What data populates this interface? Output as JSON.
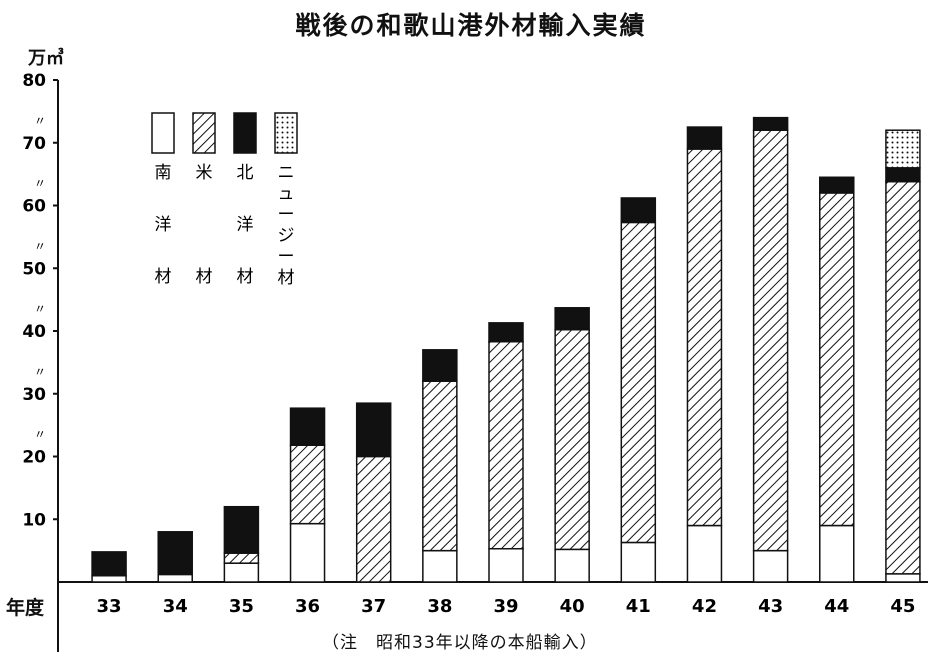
{
  "chart_data": {
    "type": "bar",
    "stacked": true,
    "title": "戦後の和歌山港外材輸入実績",
    "unit_label": "万㎥",
    "xlabel": "年度",
    "note": "（注　昭和33年以降の本船輸入）",
    "ylim": [
      0,
      80
    ],
    "yticks": [
      "10",
      "20",
      "30",
      "40",
      "50",
      "60",
      "70",
      "80"
    ],
    "ditto_mark": "〃",
    "categories": [
      "33",
      "34",
      "35",
      "36",
      "37",
      "38",
      "39",
      "40",
      "41",
      "42",
      "43",
      "44",
      "45"
    ],
    "series": [
      {
        "name": "南洋材",
        "legend_chars": [
          "南",
          "洋",
          "材"
        ],
        "pattern": "white",
        "values": [
          1,
          1.2,
          3,
          9.3,
          0,
          5,
          5.3,
          5.2,
          6.3,
          9,
          5,
          9,
          1.3
        ]
      },
      {
        "name": "米材",
        "legend_chars": [
          "米",
          "",
          "材"
        ],
        "pattern": "hatch",
        "values": [
          0,
          0,
          1.6,
          12.5,
          20,
          27,
          33,
          35,
          51,
          60,
          67,
          53,
          62.5
        ]
      },
      {
        "name": "北洋材",
        "legend_chars": [
          "北",
          "洋",
          "材"
        ],
        "pattern": "black",
        "values": [
          3.8,
          6.8,
          7.4,
          5.9,
          8.5,
          5,
          3,
          3.5,
          3.9,
          3.5,
          2,
          2.5,
          2.2
        ]
      },
      {
        "name": "ニュージー材",
        "legend_chars": [
          "ニ",
          "ュ",
          "ー",
          "ジ",
          "ー",
          "材"
        ],
        "pattern": "dots",
        "values": [
          0,
          0,
          0,
          0,
          0,
          0,
          0,
          0,
          0,
          0,
          0,
          0,
          6
        ]
      }
    ],
    "grid": false,
    "legend_position": "top-left"
  }
}
